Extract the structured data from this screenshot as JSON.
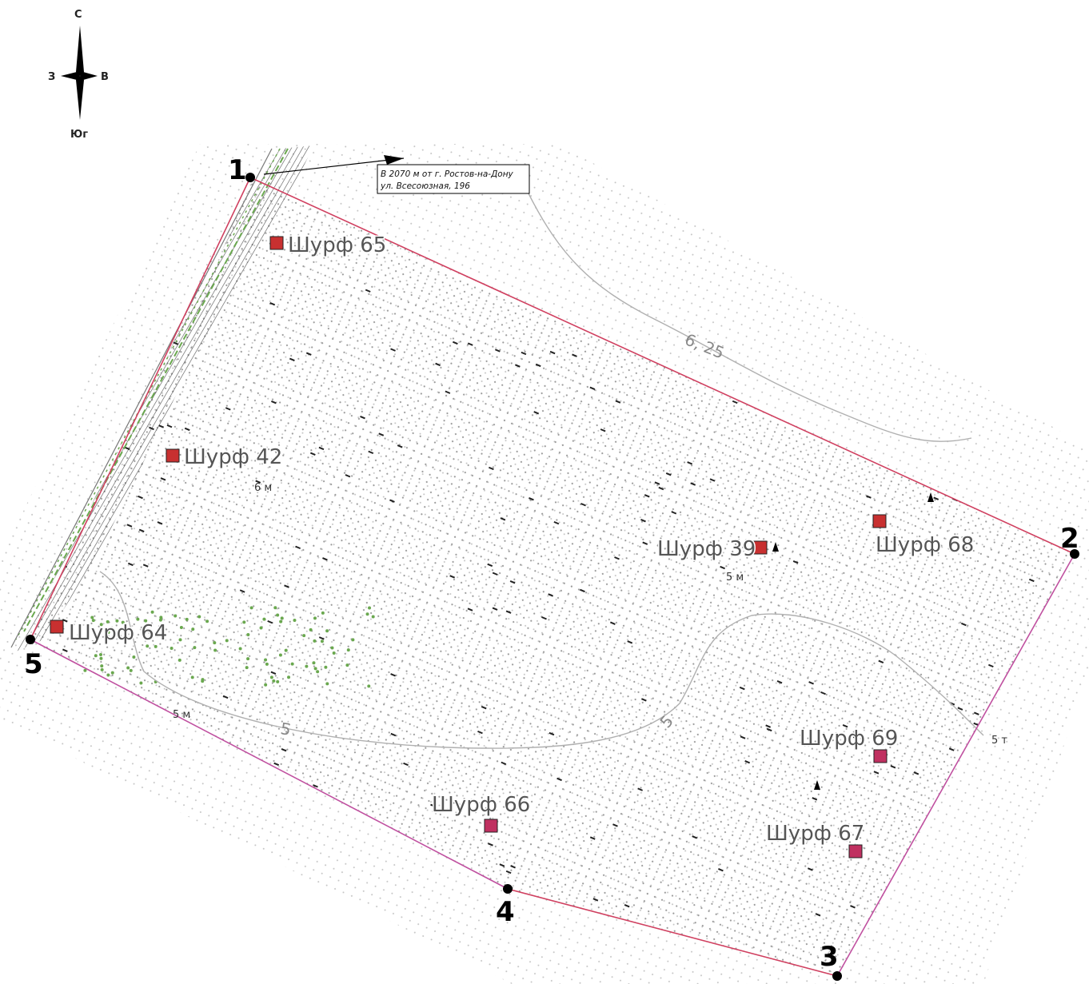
{
  "compass": {
    "north": "С",
    "south": "Юг",
    "west": "З",
    "east": "В"
  },
  "corners": [
    {
      "id": "1",
      "label": "1"
    },
    {
      "id": "2",
      "label": "2"
    },
    {
      "id": "3",
      "label": "3"
    },
    {
      "id": "4",
      "label": "4"
    },
    {
      "id": "5",
      "label": "5"
    }
  ],
  "callout": {
    "line1": "В 2070 м от г. Ростов-на-Дону",
    "line2": "ул. Всесоюзная, 196"
  },
  "pits": [
    {
      "id": "65",
      "label": "Шурф 65"
    },
    {
      "id": "42",
      "label": "Шурф 42"
    },
    {
      "id": "39",
      "label": "Шурф 39"
    },
    {
      "id": "68",
      "label": "Шурф 68"
    },
    {
      "id": "64",
      "label": "Шурф 64"
    },
    {
      "id": "69",
      "label": "Шурф 69"
    },
    {
      "id": "66",
      "label": "Шурф 66"
    },
    {
      "id": "67",
      "label": "Шурф 67"
    }
  ],
  "contours": {
    "c625": "6, 25",
    "c5a": "5",
    "c5b": "5"
  },
  "elevations": {
    "e1": "6 м",
    "e2": "5 м",
    "e3": "5 м",
    "e4": "5 т"
  },
  "colors": {
    "boundary": "#d04060",
    "boundary_south": "#c050a0",
    "pit_fill": "#c83030",
    "pit_fill_pink": "#c03060",
    "dots": "#9a9a9a",
    "contour": "#b0b0b0",
    "slope": "#333333",
    "vegetation": "#6aa84f"
  }
}
